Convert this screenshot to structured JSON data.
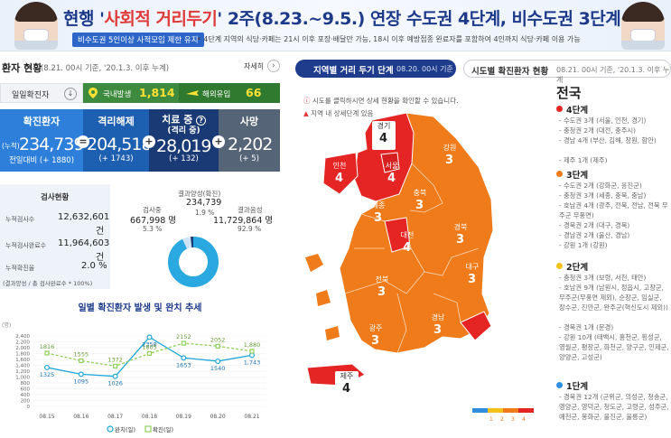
{
  "banner": {
    "headline_part1": "현행 '",
    "headline_red": "사회적 거리두기",
    "headline_part2": "' 2주(8.23.~9.5.) 연장 수도권 4단계, 비수도권 3단계",
    "chip": "비수도권 5인이상 사적모임 제한 유지",
    "subline": "• 4단계 지역의 식당·카페는 21시 이후 포장·배달만 가능, 18시 이후 예방접종 완료자를 포함하여 4인까지 식당·카페 이용 가능"
  },
  "left": {
    "title": "환자 현황",
    "date": "(8.21. 00시 기준, '20.1.3. 이후 누계)",
    "more_label": "자세히",
    "more_btn": "›"
  },
  "daily": {
    "label": "일일확진자",
    "arrow": "↓",
    "domestic_label": "국내발생",
    "domestic_value": "1,814",
    "imported_label": "해외유입",
    "imported_value": "66"
  },
  "stats": [
    {
      "label": "확진환자",
      "prefix": "(누적)",
      "value": "234,739",
      "sub": "전일대비 (+ 1880)",
      "color": "#2e7fd9",
      "op": "="
    },
    {
      "label": "격리해제",
      "prefix": "",
      "value": "204,518",
      "sub": "(+ 1743)",
      "color": "#1d5fb0",
      "op": "+"
    },
    {
      "label": "치료 중",
      "label2": "(격리 중)",
      "prefix": "",
      "value": "28,019",
      "sub": "(+ 132)",
      "color": "#1a3a75",
      "op": "+"
    },
    {
      "label": "사망",
      "prefix": "",
      "value": "2,202",
      "sub": "(+ 5)",
      "color": "#556477",
      "op": ""
    }
  ],
  "tests": {
    "title": "검사현황",
    "rows": [
      {
        "label": "누적검사수",
        "value": "12,632,601",
        "unit": "건"
      },
      {
        "label": "누적검사완료수",
        "value": "11,964,603",
        "unit": "건"
      },
      {
        "label": "누적확진율",
        "value": "2.0 %",
        "unit": ""
      }
    ],
    "note": "(결과양성 / 총 검사완료수 * 100%)",
    "result_header": "결과양성(확진)",
    "positive_value": "234,739",
    "positive_pct": "1.9 %",
    "testing_label": "검사중",
    "testing_value": "667,998 명",
    "testing_pct": "5.3 %",
    "negative_label": "결과음성",
    "negative_value": "11,729,864 명",
    "negative_pct": "92.9 %",
    "donut": {
      "positive": 1.9,
      "testing": 5.3,
      "negative": 92.9
    }
  },
  "chart_data": {
    "type": "line",
    "title": "일별 확진환자 발생 및 완치 추세",
    "ylabel": "(명)",
    "categories": [
      "08.15",
      "08.16",
      "08.17",
      "08.18",
      "08.19",
      "08.20",
      "08.21"
    ],
    "ylim": [
      0,
      2400
    ],
    "yticks": [
      "0",
      "200",
      "400",
      "600",
      "800",
      "1,000",
      "1,200",
      "1,400",
      "1,600",
      "1,800",
      "2,000",
      "2,200",
      "2,400"
    ],
    "series": [
      {
        "name": "완치(일)",
        "values": [
          1325,
          1095,
          1026,
          2358,
          1653,
          1540,
          1743
        ],
        "labels": [
          "1325",
          "1095",
          "1026",
          "2358",
          "1653",
          "1540",
          "1,743"
        ],
        "color": "#1ea6d8"
      },
      {
        "name": "확진(일)",
        "values": [
          1816,
          1555,
          1372,
          1805,
          2152,
          2052,
          1880
        ],
        "labels": [
          "1816",
          "1555",
          "1372",
          "1805",
          "2152",
          "2052",
          "1,880"
        ],
        "color": "#8fcf5a"
      }
    ]
  },
  "right": {
    "tab_active": "지역별 거리 두기 단계",
    "tab_active_date": "08.20. 00시 기준",
    "tab_other": "시도별 확진환자 현황",
    "tab_other_date": "08.21. 00시 기준, '20.1.3. 이후 누계",
    "notice1": "시도를 클릭하시면 상세 현황을 확인할 수 있습니다.",
    "notice2": "지역 내 상세단계 있음",
    "legend_nums": [
      "1",
      "2",
      "3",
      "4"
    ]
  },
  "regions": [
    {
      "name": "경기",
      "level": "4"
    },
    {
      "name": "인천",
      "level": "4"
    },
    {
      "name": "서울",
      "level": "4"
    },
    {
      "name": "강원",
      "level": "3"
    },
    {
      "name": "충북",
      "level": "3"
    },
    {
      "name": "세종",
      "level": "3"
    },
    {
      "name": "충남",
      "level": "3"
    },
    {
      "name": "대전",
      "level": "4"
    },
    {
      "name": "경북",
      "level": "3"
    },
    {
      "name": "전북",
      "level": "3"
    },
    {
      "name": "대구",
      "level": "3"
    },
    {
      "name": "경남",
      "level": "3"
    },
    {
      "name": "울산",
      "level": "3"
    },
    {
      "name": "광주",
      "level": "3"
    },
    {
      "name": "전남",
      "level": "3"
    },
    {
      "name": "부산",
      "level": "4"
    },
    {
      "name": "제주",
      "level": "4"
    }
  ],
  "side": {
    "title": "전국",
    "levels": [
      {
        "label": "4단계",
        "color": "#e52424",
        "items": [
          "- 수도권 3개 (서울, 인천, 경기)",
          "- 충청권 2개 (대전, 충주시)",
          "- 경남 4개 (부산, 김해, 창원, 함안)",
          "- 제주 1개 (제주)"
        ]
      },
      {
        "label": "3단계",
        "color": "#f07b1a",
        "items": [
          "- 수도권 2개 (강화군, 옹진군)",
          "- 충청권 3개 (세종, 충북, 충남)",
          "- 호남권 4개 (광주, 전북, 전남, 전북 무주군 무풍면)",
          "- 경북권 2개 (대구, 경북)",
          "- 경남권 2개 (울산, 경남)",
          "- 강원 1개 (강원)"
        ]
      },
      {
        "label": "2단계",
        "color": "#f2c21a",
        "items": [
          "- 충청권 3개 (보령, 서천, 태안)",
          "- 호남권 9개 (남원시, 정읍시, 고창군, 무주군(무풍면 제외), 순창군, 임실군, 장수군, 진안군, 완주군(혁신도시 제외))",
          "- 경북권 1개 (문경)",
          "- 강원 10개 (태백시, 홍천군, 횡성군, 영월군, 평창군, 화천군, 양구군, 인제군, 양양군, 고성군)"
        ]
      },
      {
        "label": "1단계",
        "color": "#2f8ee0",
        "items": [
          "- 경북권 12개 (군위군, 의성군, 청송군, 영양군, 영덕군, 청도군, 고령군, 성주군, 예천군, 봉화군, 울진군, 울릉군)"
        ]
      }
    ]
  }
}
